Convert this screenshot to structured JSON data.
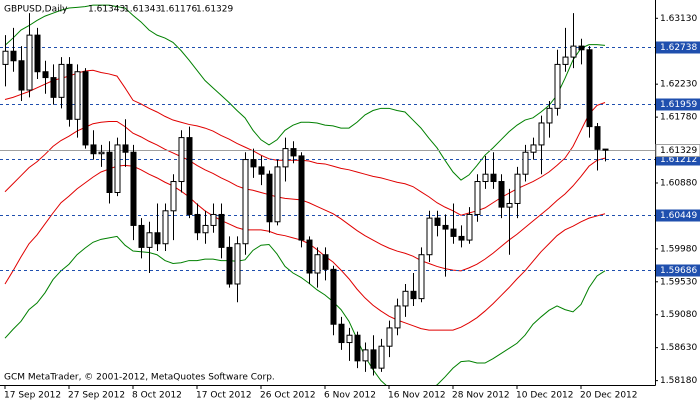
{
  "chart_data": {
    "type": "candlestick",
    "symbol": "GBPUSD,Daily",
    "copyright": "GCM MetaTrader, © 2001-2012, MetaQuotes Software Corp.",
    "categories": [
      "17 Sep 2012",
      null,
      null,
      null,
      null,
      null,
      null,
      null,
      "27 Sep 2012",
      null,
      null,
      null,
      null,
      null,
      null,
      null,
      "8 Oct 2012",
      null,
      null,
      null,
      null,
      null,
      null,
      null,
      "17 Oct 2012",
      null,
      null,
      null,
      null,
      null,
      null,
      null,
      "26 Oct 2012",
      null,
      null,
      null,
      null,
      null,
      null,
      null,
      "6 Nov 2012",
      null,
      null,
      null,
      null,
      null,
      null,
      null,
      "16 Nov 2012",
      null,
      null,
      null,
      null,
      null,
      null,
      null,
      "28 Nov 2012",
      null,
      null,
      null,
      null,
      null,
      null,
      null,
      "10 Dec 2012",
      null,
      null,
      null,
      null,
      null,
      null,
      null,
      "20 Dec 2012",
      null,
      null,
      null
    ],
    "open": [
      1.625,
      1.6268,
      1.6255,
      1.6215,
      1.629,
      1.624,
      1.6232,
      1.6205,
      1.625,
      1.6175,
      1.624,
      1.614,
      1.6128,
      1.613,
      1.6075,
      1.614,
      1.613,
      1.603,
      1.6,
      1.602,
      1.6005,
      1.605,
      1.609,
      1.615,
      1.6045,
      1.602,
      1.603,
      1.6045,
      1.6,
      1.595,
      1.6005,
      1.612,
      1.611,
      1.61,
      1.6035,
      1.611,
      1.6135,
      1.6125,
      1.601,
      1.5965,
      1.599,
      1.597,
      1.5895,
      1.587,
      1.588,
      1.5845,
      1.586,
      1.5835,
      1.5865,
      1.589,
      1.592,
      1.594,
      1.593,
      1.599,
      1.604,
      1.603,
      1.6025,
      1.6015,
      1.601,
      1.6045,
      1.609,
      1.61,
      1.609,
      1.6055,
      1.606,
      1.61,
      1.613,
      1.614,
      1.617,
      1.619,
      1.625,
      1.626,
      1.6275,
      1.627,
      1.6165,
      1.61343
    ],
    "high": [
      1.629,
      1.63,
      1.6275,
      1.632,
      1.63,
      1.6255,
      1.625,
      1.626,
      1.626,
      1.625,
      1.6245,
      1.616,
      1.614,
      1.6145,
      1.615,
      1.6175,
      1.614,
      1.604,
      1.6035,
      1.606,
      1.606,
      1.61,
      1.616,
      1.6165,
      1.606,
      1.605,
      1.606,
      1.606,
      1.6015,
      1.6015,
      1.613,
      1.6135,
      1.6125,
      1.6105,
      1.612,
      1.615,
      1.6145,
      1.613,
      1.6015,
      1.6,
      1.6,
      1.5975,
      1.5905,
      1.589,
      1.5885,
      1.587,
      1.588,
      1.5875,
      1.59,
      1.593,
      1.595,
      1.5965,
      1.6,
      1.605,
      1.605,
      1.6045,
      1.606,
      1.603,
      1.6055,
      1.61,
      1.6125,
      1.613,
      1.61,
      1.608,
      1.611,
      1.614,
      1.615,
      1.618,
      1.62,
      1.627,
      1.63,
      1.632,
      1.6285,
      1.6275,
      1.617,
      1.61343
    ],
    "low": [
      1.622,
      1.624,
      1.62,
      1.6205,
      1.623,
      1.621,
      1.6195,
      1.619,
      1.6165,
      1.615,
      1.6135,
      1.612,
      1.611,
      1.606,
      1.607,
      1.611,
      1.601,
      1.5985,
      1.5965,
      1.5995,
      1.5995,
      1.601,
      1.6075,
      1.604,
      1.601,
      1.6005,
      1.602,
      1.5985,
      1.5945,
      1.5925,
      1.599,
      1.6095,
      1.6085,
      1.602,
      1.603,
      1.609,
      1.6115,
      1.6,
      1.595,
      1.5945,
      1.5955,
      1.588,
      1.586,
      1.5845,
      1.5835,
      1.583,
      1.5825,
      1.583,
      1.585,
      1.588,
      1.5905,
      1.592,
      1.5925,
      1.598,
      1.6015,
      1.596,
      1.6005,
      1.6,
      1.6005,
      1.6035,
      1.608,
      1.608,
      1.604,
      1.599,
      1.604,
      1.609,
      1.612,
      1.61,
      1.615,
      1.618,
      1.624,
      1.6245,
      1.625,
      1.615,
      1.6105,
      1.61176
    ],
    "close": [
      1.6268,
      1.6255,
      1.6215,
      1.629,
      1.624,
      1.6232,
      1.6205,
      1.625,
      1.6175,
      1.624,
      1.614,
      1.6128,
      1.613,
      1.6075,
      1.614,
      1.613,
      1.603,
      1.6,
      1.602,
      1.6005,
      1.605,
      1.609,
      1.615,
      1.6045,
      1.602,
      1.603,
      1.6045,
      1.6,
      1.595,
      1.6005,
      1.612,
      1.611,
      1.61,
      1.6035,
      1.611,
      1.6135,
      1.6125,
      1.601,
      1.5965,
      1.599,
      1.597,
      1.5895,
      1.587,
      1.588,
      1.5845,
      1.586,
      1.5835,
      1.5865,
      1.589,
      1.592,
      1.594,
      1.593,
      1.599,
      1.604,
      1.603,
      1.6025,
      1.6015,
      1.601,
      1.6045,
      1.609,
      1.61,
      1.609,
      1.6055,
      1.606,
      1.61,
      1.613,
      1.614,
      1.617,
      1.619,
      1.625,
      1.626,
      1.6275,
      1.627,
      1.6165,
      1.6134,
      1.61329
    ],
    "candle_color": "#000000",
    "up_fill": "#ffffff",
    "down_fill": "#000000",
    "lines": [
      {
        "color": "#008000",
        "values": [
          1.6276,
          1.6286,
          1.6297,
          1.6303,
          1.631,
          1.6316,
          1.632,
          1.6324,
          1.6327,
          1.6328,
          1.6329,
          1.6331,
          1.6331,
          1.6331,
          1.6329,
          1.6327,
          1.6317,
          1.6308,
          1.6297,
          1.629,
          1.6286,
          1.628,
          1.6269,
          1.6256,
          1.6242,
          1.6228,
          1.6218,
          1.6208,
          1.6198,
          1.6187,
          1.6177,
          1.616,
          1.6147,
          1.614,
          1.6147,
          1.616,
          1.6167,
          1.6171,
          1.6171,
          1.617,
          1.6167,
          1.6166,
          1.6163,
          1.6163,
          1.6171,
          1.6181,
          1.6187,
          1.619,
          1.619,
          1.6187,
          1.6185,
          1.6174,
          1.6163,
          1.6149,
          1.6136,
          1.6119,
          1.6103,
          1.6092,
          1.6099,
          1.6112,
          1.6126,
          1.6136,
          1.6147,
          1.6158,
          1.6167,
          1.6174,
          1.6177,
          1.6185,
          1.6194,
          1.6208,
          1.6231,
          1.6256,
          1.6272,
          1.6277,
          1.6277,
          1.6276
        ]
      },
      {
        "color": "#e00000",
        "values": [
          1.6202,
          1.6205,
          1.6209,
          1.6213,
          1.6218,
          1.6223,
          1.6228,
          1.6231,
          1.6234,
          1.6238,
          1.6241,
          1.6242,
          1.6239,
          1.6237,
          1.6234,
          1.6218,
          1.6201,
          1.6196,
          1.619,
          1.6185,
          1.6179,
          1.6174,
          1.6171,
          1.6168,
          1.6166,
          1.6163,
          1.6159,
          1.6153,
          1.6148,
          1.6142,
          1.6137,
          1.6132,
          1.6126,
          1.6121,
          1.6119,
          1.6119,
          1.6119,
          1.6119,
          1.6118,
          1.6115,
          1.6114,
          1.6111,
          1.6108,
          1.6106,
          1.6103,
          1.61,
          1.6097,
          1.6095,
          1.6092,
          1.6089,
          1.6087,
          1.6083,
          1.6076,
          1.6069,
          1.6061,
          1.6055,
          1.605,
          1.6044,
          1.6047,
          1.605,
          1.6054,
          1.6061,
          1.6068,
          1.6074,
          1.608,
          1.6085,
          1.609,
          1.6096,
          1.6103,
          1.6112,
          1.6122,
          1.6138,
          1.616,
          1.6182,
          1.6194,
          1.6198
        ]
      },
      {
        "color": "#e00000",
        "values": [
          1.6076,
          1.6087,
          1.6098,
          1.6109,
          1.6117,
          1.6127,
          1.6138,
          1.6146,
          1.6152,
          1.6159,
          1.6164,
          1.6169,
          1.6171,
          1.6172,
          1.6172,
          1.6165,
          1.6156,
          1.6151,
          1.6145,
          1.614,
          1.6134,
          1.6129,
          1.6124,
          1.6119,
          1.6112,
          1.6106,
          1.6101,
          1.6095,
          1.609,
          1.6084,
          1.608,
          1.6078,
          1.6075,
          1.6072,
          1.6069,
          1.6067,
          1.6066,
          1.6065,
          1.6061,
          1.6056,
          1.6051,
          1.6046,
          1.6039,
          1.6031,
          1.6023,
          1.6016,
          1.601,
          1.6004,
          1.5999,
          1.5995,
          1.5992,
          1.5988,
          1.5982,
          1.5978,
          1.5974,
          1.5971,
          1.5969,
          1.5968,
          1.5972,
          1.5977,
          1.5984,
          1.5992,
          1.6001,
          1.601,
          1.6018,
          1.6027,
          1.6036,
          1.6045,
          1.6054,
          1.6064,
          1.6073,
          1.6084,
          1.6097,
          1.6111,
          1.6119,
          1.6122
        ]
      },
      {
        "color": "#e00000",
        "values": [
          1.595,
          1.5968,
          1.5987,
          1.6005,
          1.6017,
          1.6032,
          1.6047,
          1.6061,
          1.607,
          1.608,
          1.6088,
          1.6096,
          1.6103,
          1.6107,
          1.6111,
          1.6112,
          1.6111,
          1.6106,
          1.61,
          1.6095,
          1.6089,
          1.6084,
          1.6077,
          1.6069,
          1.6059,
          1.605,
          1.6043,
          1.6037,
          1.6032,
          1.6027,
          1.6024,
          1.6024,
          1.6024,
          1.6022,
          1.6018,
          1.6016,
          1.6013,
          1.601,
          1.6005,
          1.5997,
          1.5988,
          1.598,
          1.5969,
          1.5957,
          1.5943,
          1.5931,
          1.5921,
          1.5913,
          1.5906,
          1.5901,
          1.5897,
          1.5893,
          1.5889,
          1.5887,
          1.5887,
          1.5887,
          1.5887,
          1.5891,
          1.5897,
          1.5904,
          1.5913,
          1.5923,
          1.5934,
          1.5945,
          1.5957,
          1.5968,
          1.5981,
          1.5994,
          1.6005,
          1.6016,
          1.6024,
          1.6029,
          1.6035,
          1.604,
          1.6043,
          1.6046
        ]
      },
      {
        "color": "#008000",
        "values": [
          1.5876,
          1.5888,
          1.5899,
          1.5915,
          1.5924,
          1.5938,
          1.5956,
          1.5968,
          1.5977,
          1.599,
          1.5999,
          1.6007,
          1.6011,
          1.6013,
          1.6015,
          1.6003,
          1.5995,
          1.5994,
          1.5993,
          1.599,
          1.5982,
          1.5978,
          1.5979,
          1.5982,
          1.5982,
          1.5984,
          1.5984,
          1.5982,
          1.5982,
          1.5981,
          1.5983,
          1.5996,
          1.6003,
          1.6004,
          1.5991,
          1.5974,
          1.5965,
          1.5959,
          1.5951,
          1.5942,
          1.5935,
          1.5926,
          1.5915,
          1.5899,
          1.5875,
          1.5851,
          1.5833,
          1.5818,
          1.5808,
          1.5803,
          1.5799,
          1.5802,
          1.5801,
          1.5807,
          1.5812,
          1.5823,
          1.5835,
          1.5844,
          1.5845,
          1.5842,
          1.5842,
          1.5848,
          1.5855,
          1.5862,
          1.5869,
          1.588,
          1.5895,
          1.5905,
          1.5914,
          1.592,
          1.5915,
          1.5912,
          1.5922,
          1.5945,
          1.5961,
          1.5968
        ]
      }
    ],
    "levels": [
      1.62738,
      1.61959,
      1.61212,
      1.60449,
      1.59686
    ],
    "level_color": "#1f4fae",
    "last_price": 1.61329,
    "last_price_color": "#a0a0a0",
    "ylim": [
      1.5812,
      1.6338
    ],
    "yticks": [
      {
        "value": 1.6313,
        "label": "1.63130"
      },
      {
        "value": 1.6223,
        "label": "1.62230"
      },
      {
        "value": 1.6178,
        "label": "1.61780"
      },
      {
        "value": 1.6088,
        "label": "1.60880"
      },
      {
        "value": 1.5998,
        "label": "1.59980"
      },
      {
        "value": 1.5953,
        "label": "1.59530"
      },
      {
        "value": 1.5908,
        "label": "1.59080"
      },
      {
        "value": 1.5863,
        "label": "1.58630"
      },
      {
        "value": 1.5818,
        "label": "1.58180"
      }
    ]
  }
}
